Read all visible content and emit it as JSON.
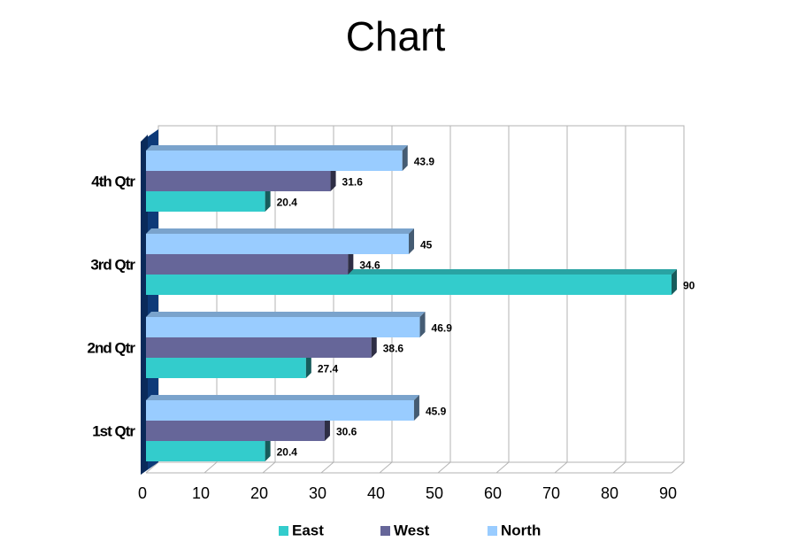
{
  "chart_data": {
    "type": "bar",
    "orientation": "horizontal",
    "title": "Chart",
    "categories": [
      "1st Qtr",
      "2nd Qtr",
      "3rd Qtr",
      "4th Qtr"
    ],
    "series": [
      {
        "name": "East",
        "values": [
          20.4,
          27.4,
          90,
          20.4
        ],
        "color": "#33cccc"
      },
      {
        "name": "West",
        "values": [
          30.6,
          38.6,
          34.6,
          31.6
        ],
        "color": "#666699"
      },
      {
        "name": "North",
        "values": [
          45.9,
          46.9,
          45,
          43.9
        ],
        "color": "#99ccff"
      }
    ],
    "data_labels": {
      "East": [
        "20.4",
        "27.4",
        "90",
        "20.4"
      ],
      "West": [
        "30.6",
        "38.6",
        "34.6",
        "31.6"
      ],
      "North": [
        "45.9",
        "46.9",
        "45",
        "43.9"
      ]
    },
    "xlim": [
      0,
      90
    ],
    "x_ticks": [
      "0",
      "10",
      "20",
      "30",
      "40",
      "50",
      "60",
      "70",
      "80",
      "90"
    ],
    "grid": true,
    "legend": "bottom",
    "style": "3d"
  }
}
